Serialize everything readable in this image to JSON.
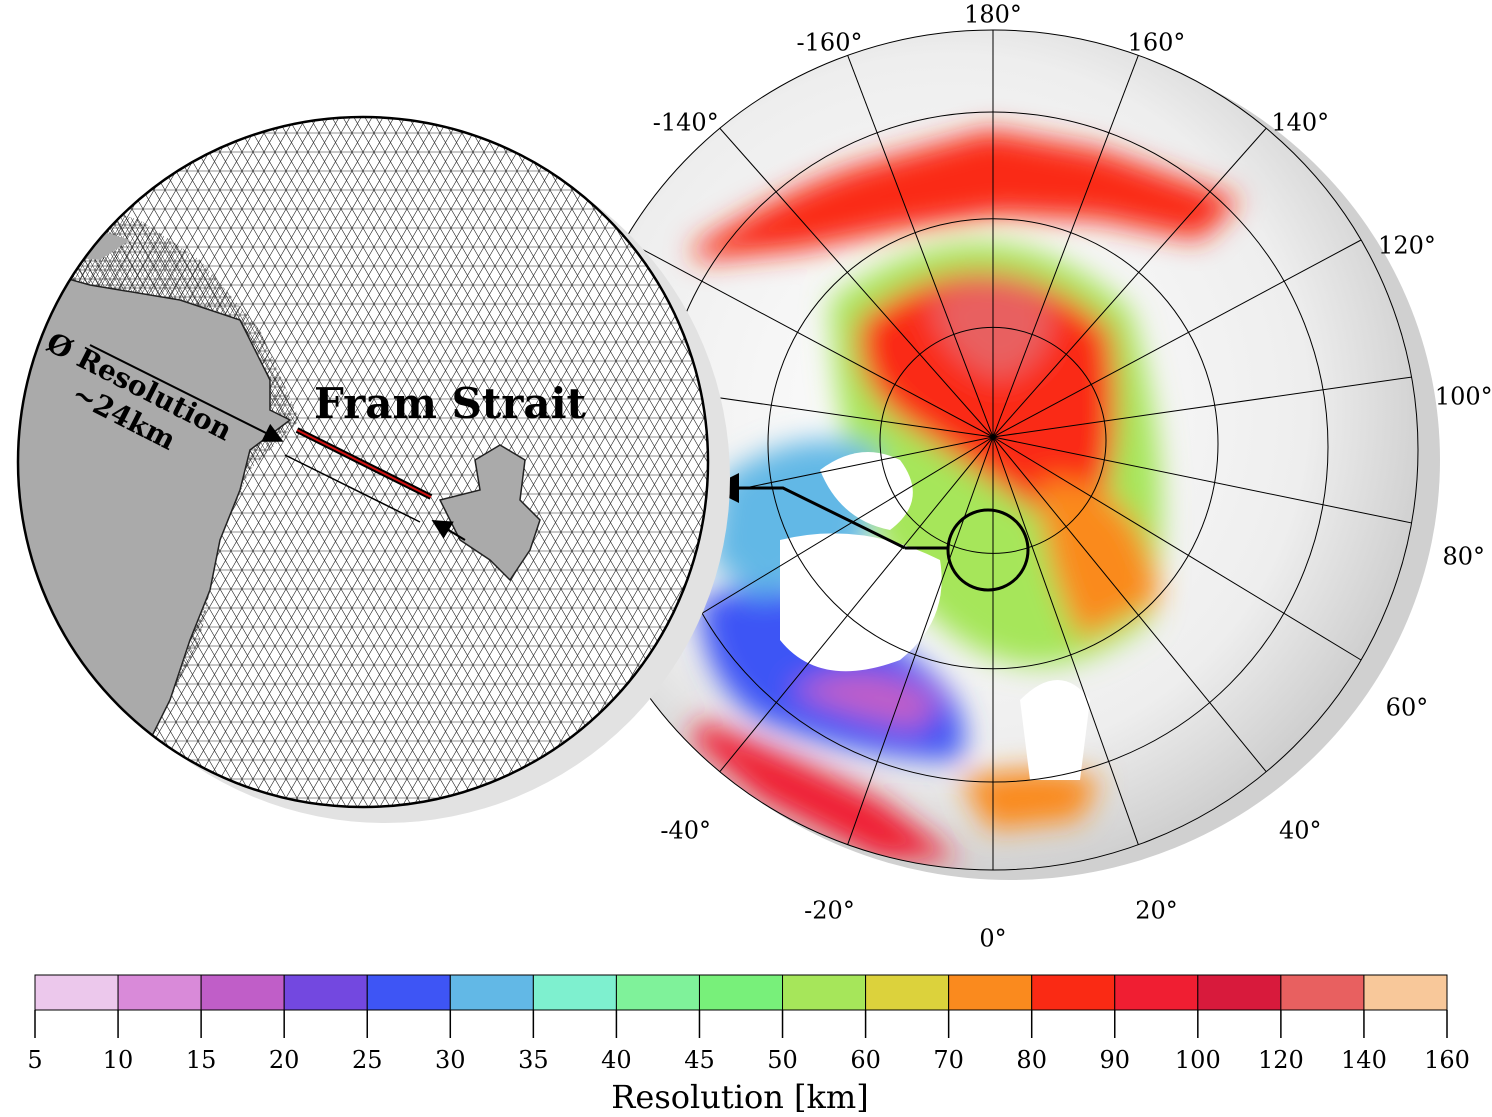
{
  "map": {
    "meridians": [
      {
        "value": 180,
        "label": "180°"
      },
      {
        "value": -160,
        "label": "-160°"
      },
      {
        "value": 160,
        "label": "160°"
      },
      {
        "value": -140,
        "label": "-140°"
      },
      {
        "value": 140,
        "label": "140°"
      },
      {
        "value": 120,
        "label": "120°"
      },
      {
        "value": 100,
        "label": "100°"
      },
      {
        "value": 80,
        "label": "80°"
      },
      {
        "value": 60,
        "label": "60°"
      },
      {
        "value": -40,
        "label": "-40°"
      },
      {
        "value": 40,
        "label": "40°"
      },
      {
        "value": -20,
        "label": "-20°"
      },
      {
        "value": 20,
        "label": "20°"
      },
      {
        "value": 0,
        "label": "0°"
      }
    ],
    "inset_title": "Fram Strait",
    "inset_annotation": [
      "Ø Resolution",
      "~24km"
    ]
  },
  "colorbar": {
    "ticks": [
      5,
      10,
      15,
      20,
      25,
      30,
      35,
      40,
      45,
      50,
      60,
      70,
      80,
      90,
      100,
      120,
      140,
      160
    ],
    "colors": [
      "#ecc8ec",
      "#d98ad9",
      "#c05ec8",
      "#7348e0",
      "#3e55f5",
      "#62b8e6",
      "#7ef0cf",
      "#7ff29a",
      "#78f07a",
      "#a6e65a",
      "#dcd23c",
      "#fa8a1e",
      "#fa2a14",
      "#f01e32",
      "#d81a3c",
      "#e86060",
      "#f8c89a"
    ],
    "label": "Resolution [km]"
  }
}
